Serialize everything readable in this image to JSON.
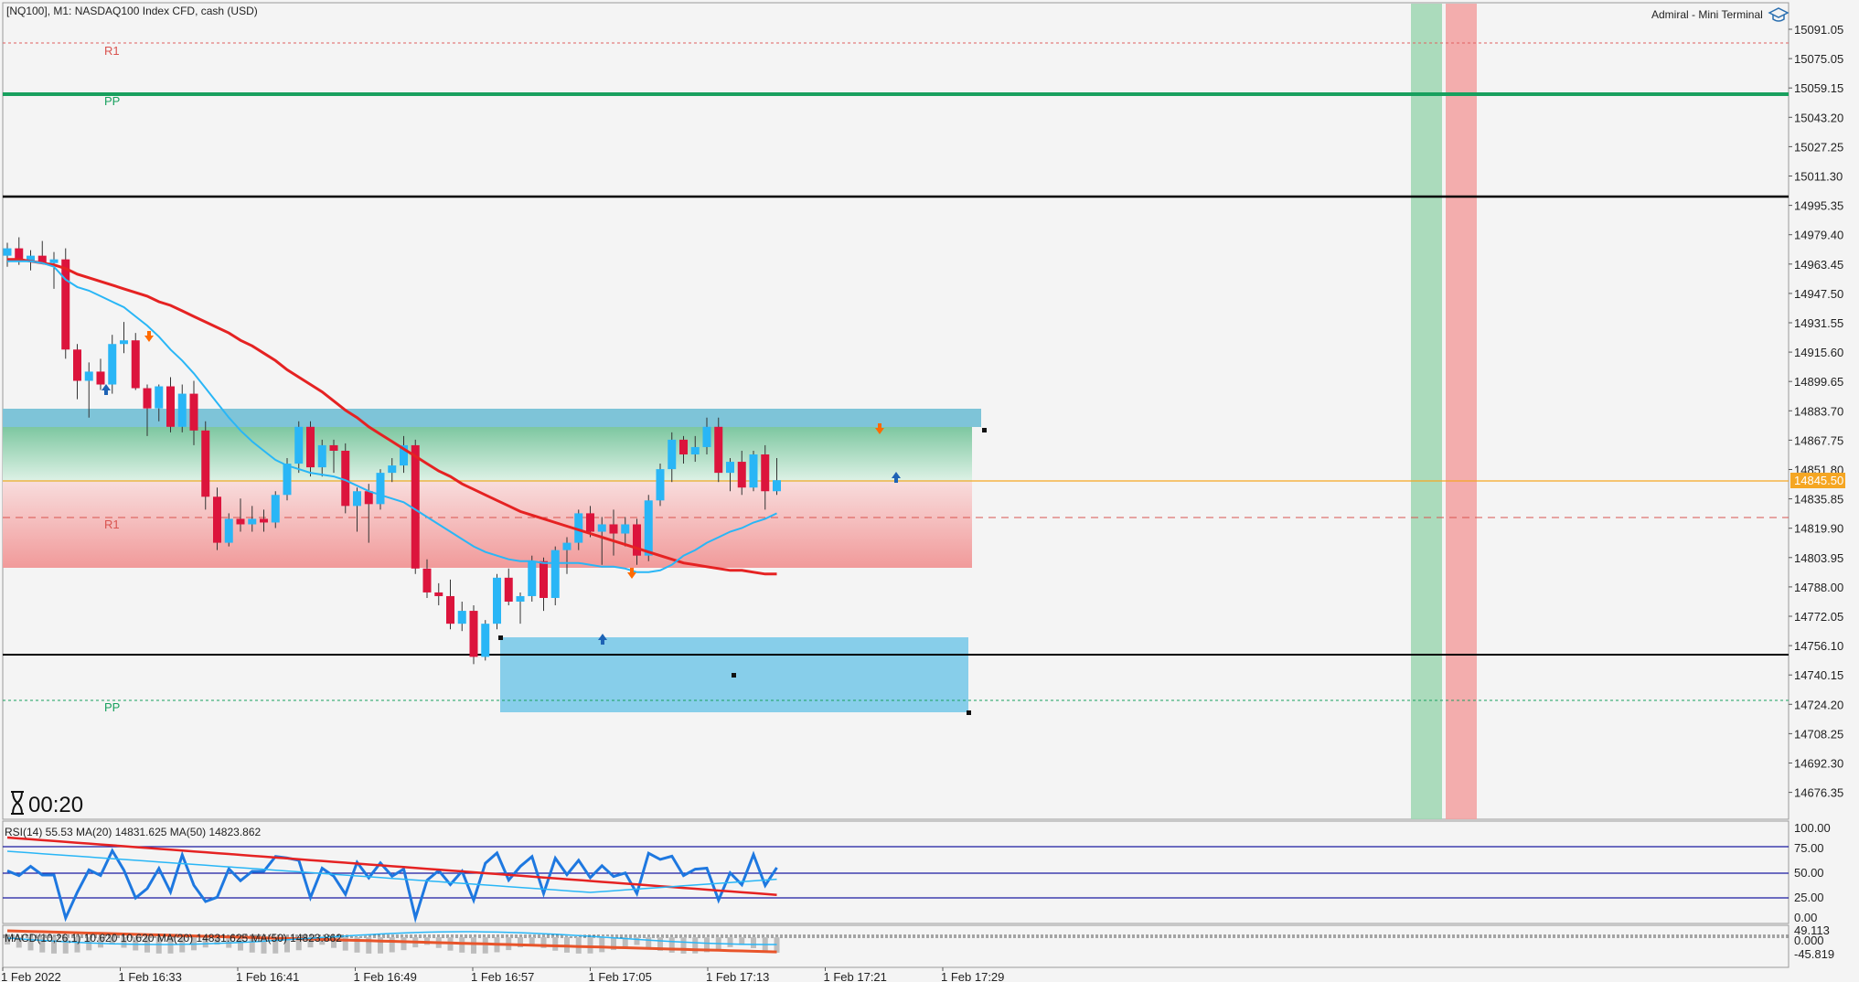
{
  "header": {
    "symbol_info": "[NQ100], M1:  NASDAQ100 Index CFD, cash (USD)",
    "brand": "Admiral - Mini Terminal",
    "brand_icon": "graduation-cap-icon"
  },
  "timer": {
    "icon": "hourglass-icon",
    "value": "00:20"
  },
  "price_axis": {
    "labels": [
      "15091.05",
      "15075.05",
      "15059.15",
      "15043.20",
      "15027.25",
      "15011.30",
      "14995.35",
      "14979.40",
      "14963.45",
      "14947.50",
      "14931.55",
      "14915.60",
      "14899.65",
      "14883.70",
      "14867.75",
      "14851.80",
      "14835.85",
      "14819.90",
      "14803.95",
      "14788.00",
      "14772.05",
      "14756.10",
      "14740.15",
      "14724.20",
      "14708.25",
      "14692.30",
      "14676.35"
    ],
    "current_price": "14845.50"
  },
  "pivot_labels": {
    "r1_top": "R1",
    "pp_top": "PP",
    "r1_mid": "R1",
    "pp_bottom": "PP"
  },
  "time_axis": [
    "1 Feb 2022",
    "1 Feb 16:33",
    "1 Feb 16:41",
    "1 Feb 16:49",
    "1 Feb 16:57",
    "1 Feb 17:05",
    "1 Feb 17:13",
    "1 Feb 17:21",
    "1 Feb 17:29"
  ],
  "rsi": {
    "label": "RSI(14) 55.53 MA(20) 14831.625 MA(50) 14823.862",
    "axis": [
      "100.00",
      "75.00",
      "50.00",
      "25.00",
      "0.00"
    ]
  },
  "macd": {
    "label": "MACD(10,26,1) 10.620 10.620 MA(20) 14831.625 MA(50) 14823.862",
    "axis": [
      "49.113",
      "0.000",
      "-45.819"
    ]
  },
  "colors": {
    "bull": "#29b6f6",
    "bear": "#dc143c",
    "pp_line": "#18a05e",
    "ma_fast": "#29b6f6",
    "ma_slow": "#e52222",
    "price_line": "#f5a623"
  },
  "candles": [
    [
      14968,
      14975,
      14962,
      14972
    ],
    [
      14972,
      14978,
      14963,
      14965
    ],
    [
      14965,
      14971,
      14960,
      14968
    ],
    [
      14968,
      14976,
      14965,
      14964
    ],
    [
      14964,
      14970,
      14950,
      14966
    ],
    [
      14966,
      14972,
      14912,
      14917
    ],
    [
      14917,
      14920,
      14890,
      14900
    ],
    [
      14900,
      14910,
      14880,
      14905
    ],
    [
      14905,
      14912,
      14895,
      14898
    ],
    [
      14898,
      14925,
      14893,
      14920
    ],
    [
      14920,
      14932,
      14915,
      14922
    ],
    [
      14922,
      14926,
      14895,
      14896
    ],
    [
      14896,
      14898,
      14870,
      14885
    ],
    [
      14885,
      14898,
      14878,
      14897
    ],
    [
      14897,
      14902,
      14872,
      14875
    ],
    [
      14875,
      14898,
      14872,
      14893
    ],
    [
      14893,
      14900,
      14865,
      14873
    ],
    [
      14873,
      14878,
      14830,
      14837
    ],
    [
      14837,
      14842,
      14808,
      14812
    ],
    [
      14812,
      14828,
      14810,
      14825
    ],
    [
      14825,
      14836,
      14818,
      14822
    ],
    [
      14822,
      14832,
      14818,
      14825
    ],
    [
      14825,
      14830,
      14818,
      14823
    ],
    [
      14823,
      14840,
      14820,
      14838
    ],
    [
      14838,
      14858,
      14835,
      14855
    ],
    [
      14855,
      14878,
      14850,
      14875
    ],
    [
      14875,
      14878,
      14848,
      14853
    ],
    [
      14853,
      14868,
      14848,
      14865
    ],
    [
      14865,
      14868,
      14850,
      14862
    ],
    [
      14862,
      14866,
      14828,
      14832
    ],
    [
      14832,
      14842,
      14818,
      14840
    ],
    [
      14840,
      14844,
      14812,
      14833
    ],
    [
      14833,
      14852,
      14830,
      14850
    ],
    [
      14850,
      14858,
      14845,
      14854
    ],
    [
      14854,
      14870,
      14850,
      14865
    ],
    [
      14865,
      14868,
      14795,
      14798
    ],
    [
      14798,
      14803,
      14782,
      14785
    ],
    [
      14785,
      14790,
      14778,
      14783
    ],
    [
      14783,
      14792,
      14765,
      14768
    ],
    [
      14768,
      14780,
      14764,
      14775
    ],
    [
      14775,
      14778,
      14746,
      14750
    ],
    [
      14750,
      14770,
      14748,
      14768
    ],
    [
      14768,
      14795,
      14765,
      14793
    ],
    [
      14793,
      14798,
      14778,
      14780
    ],
    [
      14780,
      14785,
      14768,
      14783
    ],
    [
      14783,
      14805,
      14780,
      14802
    ],
    [
      14802,
      14804,
      14775,
      14782
    ],
    [
      14782,
      14810,
      14778,
      14808
    ],
    [
      14808,
      14815,
      14795,
      14812
    ],
    [
      14812,
      14830,
      14808,
      14828
    ],
    [
      14828,
      14832,
      14815,
      14818
    ],
    [
      14818,
      14826,
      14800,
      14822
    ],
    [
      14822,
      14830,
      14805,
      14817
    ],
    [
      14817,
      14826,
      14810,
      14822
    ],
    [
      14822,
      14825,
      14800,
      14805
    ],
    [
      14805,
      14838,
      14802,
      14835
    ],
    [
      14835,
      14855,
      14832,
      14852
    ],
    [
      14852,
      14872,
      14845,
      14868
    ],
    [
      14868,
      14870,
      14855,
      14860
    ],
    [
      14860,
      14870,
      14856,
      14864
    ],
    [
      14864,
      14880,
      14860,
      14875
    ],
    [
      14875,
      14880,
      14845,
      14850
    ],
    [
      14850,
      14858,
      14840,
      14856
    ],
    [
      14856,
      14862,
      14838,
      14842
    ],
    [
      14842,
      14862,
      14840,
      14860
    ],
    [
      14860,
      14865,
      14830,
      14840
    ],
    [
      14840,
      14858,
      14838,
      14846
    ]
  ],
  "ma_fast_values": [
    14965,
    14965,
    14965,
    14964,
    14962,
    14955,
    14951,
    14949,
    14946,
    14943,
    14940,
    14935,
    14930,
    14924,
    14917,
    14911,
    14904,
    14896,
    14888,
    14880,
    14873,
    14867,
    14862,
    14857,
    14854,
    14852,
    14850,
    14849,
    14848,
    14846,
    14843,
    14840,
    14838,
    14836,
    14834,
    14830,
    14826,
    14822,
    14818,
    14814,
    14810,
    14807,
    14805,
    14803,
    14802,
    14802,
    14801,
    14801,
    14801,
    14801,
    14800,
    14799,
    14799,
    14798,
    14796,
    14796,
    14797,
    14800,
    14805,
    14808,
    14812,
    14815,
    14818,
    14820,
    14823,
    14825,
    14828
  ],
  "ma_slow_values": [
    14966,
    14966,
    14965,
    14964,
    14963,
    14961,
    14958,
    14956,
    14954,
    14952,
    14950,
    14948,
    14946,
    14943,
    14941,
    14938,
    14935,
    14932,
    14929,
    14926,
    14922,
    14919,
    14915,
    14911,
    14906,
    14902,
    14898,
    14894,
    14889,
    14884,
    14880,
    14875,
    14871,
    14867,
    14863,
    14859,
    14855,
    14851,
    14848,
    14844,
    14841,
    14838,
    14835,
    14832,
    14829,
    14827,
    14825,
    14823,
    14821,
    14819,
    14817,
    14815,
    14813,
    14811,
    14809,
    14807,
    14805,
    14803,
    14801,
    14800,
    14799,
    14798,
    14797,
    14797,
    14796,
    14795,
    14795
  ]
}
